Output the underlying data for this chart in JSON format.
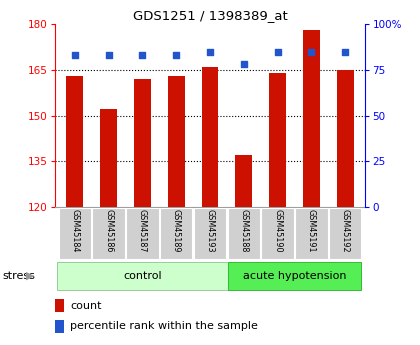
{
  "title": "GDS1251 / 1398389_at",
  "samples": [
    "GSM45184",
    "GSM45186",
    "GSM45187",
    "GSM45189",
    "GSM45193",
    "GSM45188",
    "GSM45190",
    "GSM45191",
    "GSM45192"
  ],
  "counts": [
    163,
    152,
    162,
    163,
    166,
    137,
    164,
    178,
    165
  ],
  "percentiles": [
    83,
    83,
    83,
    83,
    85,
    78,
    85,
    85,
    85
  ],
  "ylim_left": [
    120,
    180
  ],
  "ylim_right": [
    0,
    100
  ],
  "yticks_left": [
    120,
    135,
    150,
    165,
    180
  ],
  "yticks_right": [
    0,
    25,
    50,
    75,
    100
  ],
  "bar_color": "#cc1100",
  "dot_color": "#2255cc",
  "control_samples": 5,
  "acute_samples": 4,
  "control_label": "control",
  "acute_label": "acute hypotension",
  "legend_count": "count",
  "legend_pct": "percentile rank within the sample",
  "stress_label": "stress",
  "sample_box_color": "#d0d0d0",
  "control_color": "#ccffcc",
  "acute_color": "#55ee55",
  "grid_color": "#000000",
  "bar_width": 0.5
}
